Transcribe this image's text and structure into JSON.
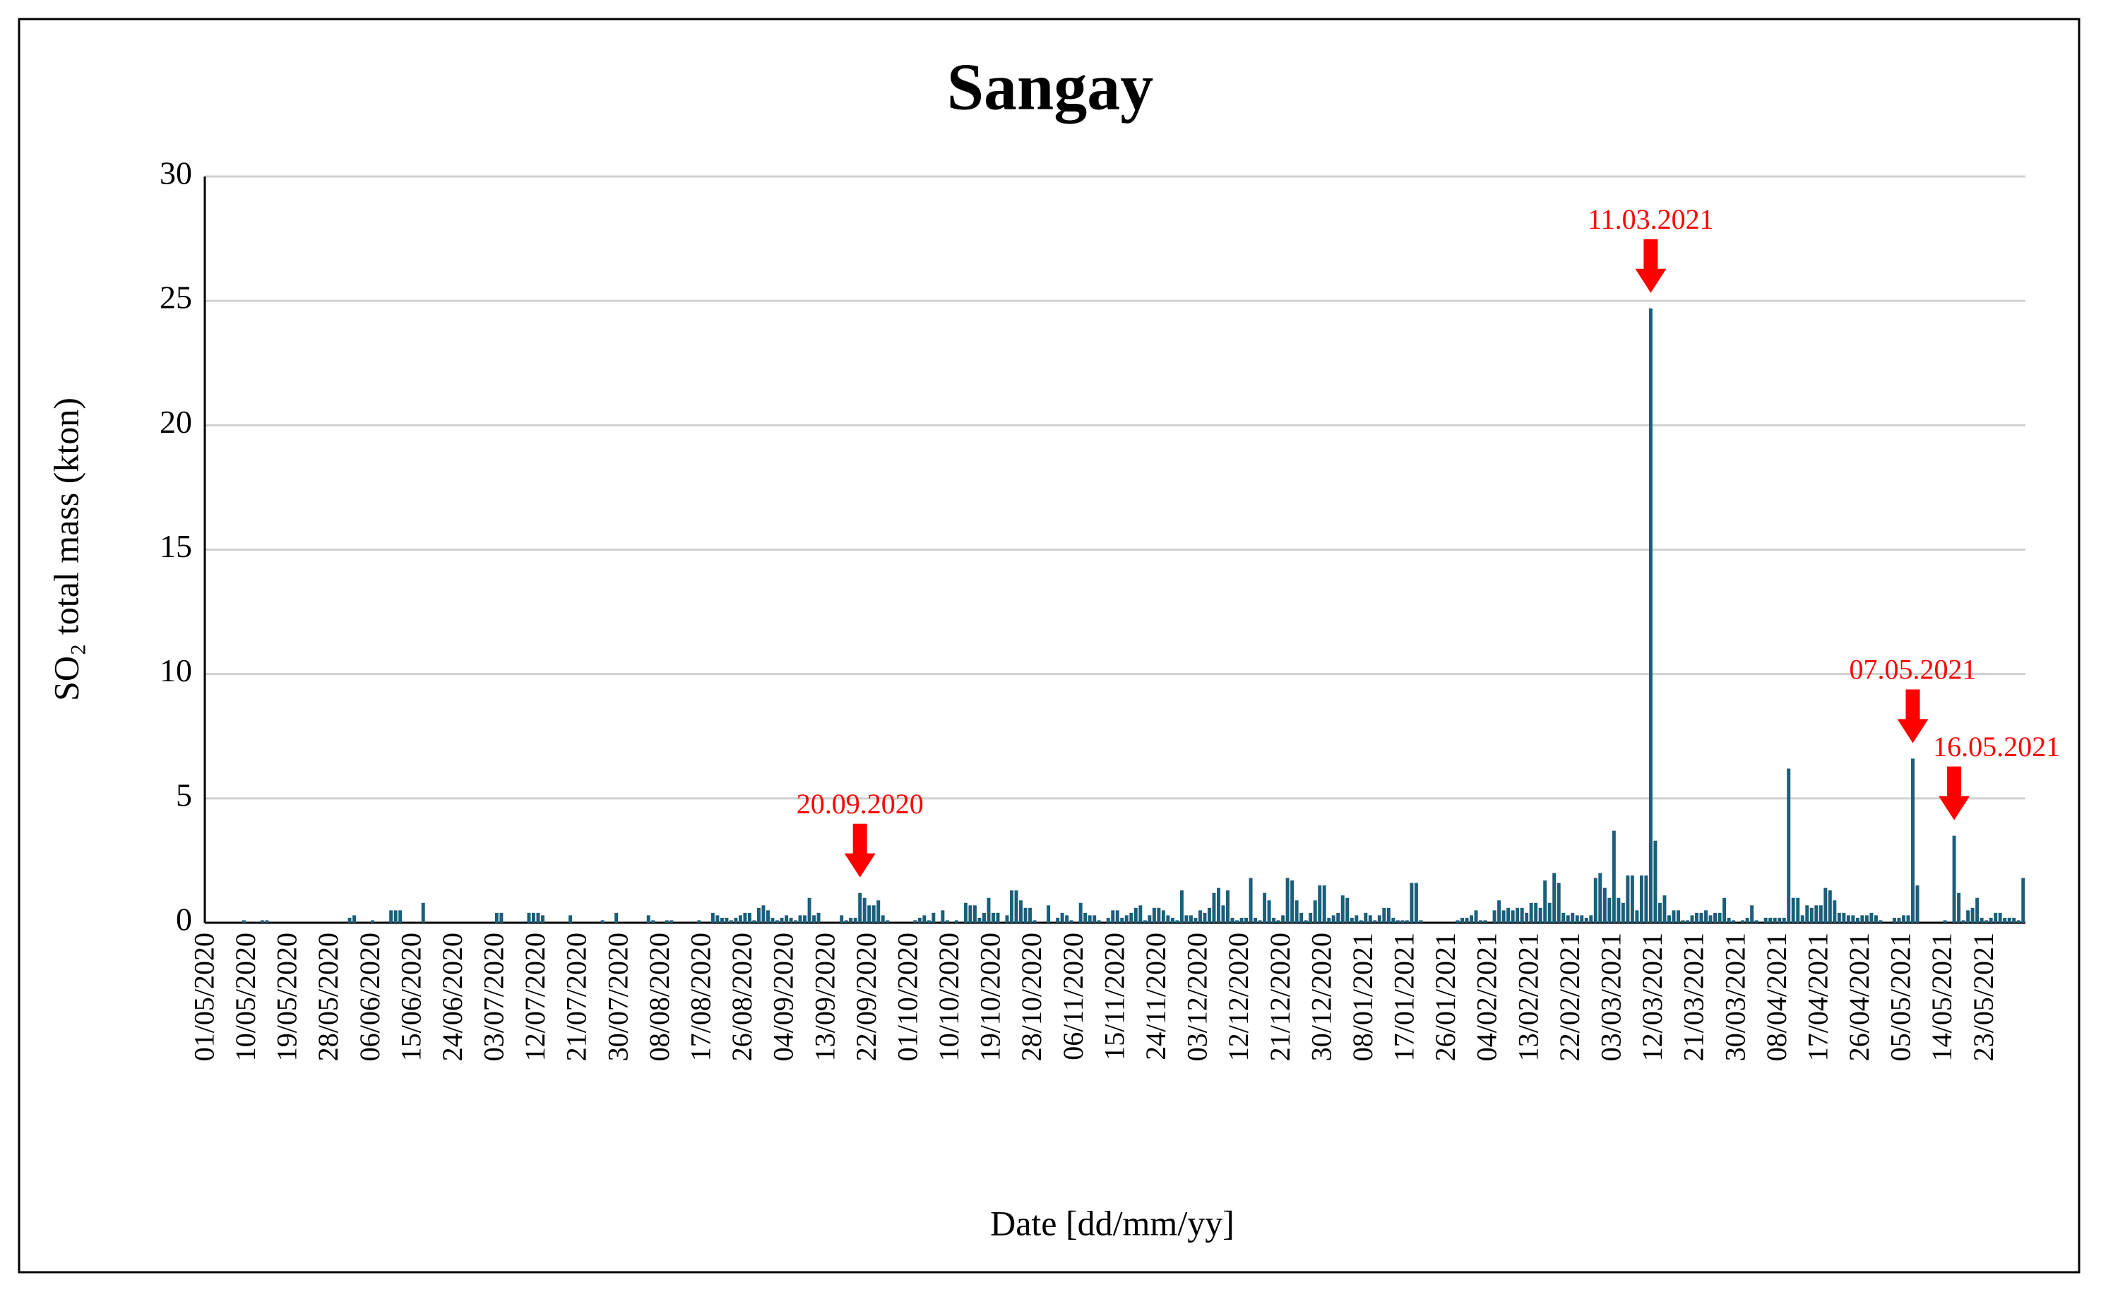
{
  "chart_data": {
    "type": "bar",
    "title": "Sangay",
    "x_label": "Date [dd/mm/yy]",
    "y_label": "SO₂ total mass (kton)",
    "color": "#1b5e7b",
    "grid": true,
    "ylim": [
      0,
      30
    ],
    "yticks": [
      0,
      5,
      10,
      15,
      20,
      25,
      30
    ],
    "annotations": [
      "20.09.2020",
      "11.03.2021",
      "07.05.2021",
      "16.05.2021"
    ],
    "categories": [
      "01/05/2020",
      null,
      null,
      null,
      null,
      null,
      null,
      null,
      null,
      "10/05/2020",
      null,
      null,
      null,
      null,
      null,
      null,
      null,
      null,
      "19/05/2020",
      null,
      null,
      null,
      null,
      null,
      null,
      null,
      null,
      "28/05/2020",
      null,
      null,
      null,
      null,
      null,
      null,
      null,
      null,
      "06/06/2020",
      null,
      null,
      null,
      null,
      null,
      null,
      null,
      null,
      "15/06/2020",
      null,
      null,
      null,
      null,
      null,
      null,
      null,
      null,
      "24/06/2020",
      null,
      null,
      null,
      null,
      null,
      null,
      null,
      null,
      "03/07/2020",
      null,
      null,
      null,
      null,
      null,
      null,
      null,
      null,
      "12/07/2020",
      null,
      null,
      null,
      null,
      null,
      null,
      null,
      null,
      "21/07/2020",
      null,
      null,
      null,
      null,
      null,
      null,
      null,
      null,
      "30/07/2020",
      null,
      null,
      null,
      null,
      null,
      null,
      null,
      null,
      "08/08/2020",
      null,
      null,
      null,
      null,
      null,
      null,
      null,
      null,
      "17/08/2020",
      null,
      null,
      null,
      null,
      null,
      null,
      null,
      null,
      "26/08/2020",
      null,
      null,
      null,
      null,
      null,
      null,
      null,
      null,
      "04/09/2020",
      null,
      null,
      null,
      null,
      null,
      null,
      null,
      null,
      "13/09/2020",
      null,
      null,
      null,
      null,
      null,
      null,
      null,
      null,
      "22/09/2020",
      null,
      null,
      null,
      null,
      null,
      null,
      null,
      null,
      "01/10/2020",
      null,
      null,
      null,
      null,
      null,
      null,
      null,
      null,
      "10/10/2020",
      null,
      null,
      null,
      null,
      null,
      null,
      null,
      null,
      "19/10/2020",
      null,
      null,
      null,
      null,
      null,
      null,
      null,
      null,
      "28/10/2020",
      null,
      null,
      null,
      null,
      null,
      null,
      null,
      null,
      "06/11/2020",
      null,
      null,
      null,
      null,
      null,
      null,
      null,
      null,
      "15/11/2020",
      null,
      null,
      null,
      null,
      null,
      null,
      null,
      null,
      "24/11/2020",
      null,
      null,
      null,
      null,
      null,
      null,
      null,
      null,
      "03/12/2020",
      null,
      null,
      null,
      null,
      null,
      null,
      null,
      null,
      "12/12/2020",
      null,
      null,
      null,
      null,
      null,
      null,
      null,
      null,
      "21/12/2020",
      null,
      null,
      null,
      null,
      null,
      null,
      null,
      null,
      "30/12/2020",
      null,
      null,
      null,
      null,
      null,
      null,
      null,
      null,
      "08/01/2021",
      null,
      null,
      null,
      null,
      null,
      null,
      null,
      null,
      "17/01/2021",
      null,
      null,
      null,
      null,
      null,
      null,
      null,
      null,
      "26/01/2021",
      null,
      null,
      null,
      null,
      null,
      null,
      null,
      null,
      "04/02/2021",
      null,
      null,
      null,
      null,
      null,
      null,
      null,
      null,
      "13/02/2021",
      null,
      null,
      null,
      null,
      null,
      null,
      null,
      null,
      "22/02/2021",
      null,
      null,
      null,
      null,
      null,
      null,
      null,
      null,
      "03/03/2021",
      null,
      null,
      null,
      null,
      null,
      null,
      null,
      null,
      "12/03/2021",
      null,
      null,
      null,
      null,
      null,
      null,
      null,
      null,
      "21/03/2021",
      null,
      null,
      null,
      null,
      null,
      null,
      null,
      null,
      "30/03/2021",
      null,
      null,
      null,
      null,
      null,
      null,
      null,
      null,
      "08/04/2021",
      null,
      null,
      null,
      null,
      null,
      null,
      null,
      null,
      "17/04/2021",
      null,
      null,
      null,
      null,
      null,
      null,
      null,
      null,
      "26/04/2021",
      null,
      null,
      null,
      null,
      null,
      null,
      null,
      null,
      "05/05/2021",
      null,
      null,
      null,
      null,
      null,
      null,
      null,
      null,
      "14/05/2021",
      null,
      null,
      null,
      null,
      null,
      null,
      null,
      null,
      "23/05/2021",
      null,
      null,
      null,
      null,
      null,
      null,
      null,
      null
    ],
    "values": [
      0,
      0,
      0,
      0,
      0,
      0,
      0,
      0,
      0.1,
      0,
      0,
      0,
      0.1,
      0.1,
      0,
      0,
      0,
      0,
      0,
      0,
      0,
      0,
      0,
      0,
      0,
      0,
      0,
      0,
      0,
      0,
      0,
      0.2,
      0.3,
      0,
      0,
      0,
      0.1,
      0,
      0,
      0,
      0.5,
      0.5,
      0.5,
      0,
      0,
      0,
      0,
      0.8,
      0,
      0,
      0,
      0,
      0,
      0,
      0,
      0,
      0,
      0,
      0,
      0,
      0,
      0,
      0,
      0.4,
      0.4,
      0,
      0,
      0,
      0,
      0,
      0.4,
      0.4,
      0.4,
      0.3,
      0,
      0,
      0,
      0,
      0,
      0.3,
      0,
      0,
      0,
      0,
      0,
      0,
      0.1,
      0,
      0,
      0.4,
      0,
      0,
      0,
      0,
      0,
      0,
      0.3,
      0.1,
      0,
      0,
      0.1,
      0.1,
      0,
      0,
      0,
      0,
      0,
      0.1,
      0,
      0,
      0.4,
      0.3,
      0.2,
      0.2,
      0.1,
      0.2,
      0.3,
      0.4,
      0.4,
      0.1,
      0.6,
      0.7,
      0.5,
      0.2,
      0.1,
      0.2,
      0.3,
      0.2,
      0.1,
      0.3,
      0.3,
      1.0,
      0.3,
      0.4,
      0,
      0,
      0,
      0,
      0.3,
      0.1,
      0.2,
      0.2,
      1.2,
      1.0,
      0.7,
      0.7,
      0.9,
      0.3,
      0.1,
      0,
      0,
      0,
      0,
      0,
      0.1,
      0.2,
      0.3,
      0.1,
      0.4,
      0,
      0.5,
      0.1,
      0,
      0.1,
      0,
      0.8,
      0.7,
      0.7,
      0.2,
      0.4,
      1.0,
      0.4,
      0.4,
      0,
      0.3,
      1.3,
      1.3,
      0.9,
      0.6,
      0.6,
      0.1,
      0,
      0,
      0.7,
      0,
      0.2,
      0.4,
      0.3,
      0.1,
      0,
      0.8,
      0.4,
      0.3,
      0.3,
      0.1,
      0,
      0.2,
      0.5,
      0.5,
      0.2,
      0.3,
      0.4,
      0.6,
      0.7,
      0.1,
      0.3,
      0.6,
      0.6,
      0.5,
      0.3,
      0.2,
      0.1,
      1.3,
      0.3,
      0.3,
      0.2,
      0.5,
      0.4,
      0.6,
      1.2,
      1.4,
      0.7,
      1.3,
      0.2,
      0.1,
      0.2,
      0.2,
      1.8,
      0.2,
      0.1,
      1.2,
      0.9,
      0.2,
      0.1,
      0.3,
      1.8,
      1.7,
      0.9,
      0.4,
      0.1,
      0.4,
      0.9,
      1.5,
      1.5,
      0.2,
      0.3,
      0.4,
      1.1,
      1.0,
      0.2,
      0.3,
      0.1,
      0.4,
      0.3,
      0.1,
      0.3,
      0.6,
      0.6,
      0.2,
      0.1,
      0.1,
      0.1,
      1.6,
      1.6,
      0.1,
      0,
      0,
      0,
      0,
      0,
      0,
      0,
      0.1,
      0.2,
      0.2,
      0.3,
      0.5,
      0.1,
      0.1,
      0,
      0.5,
      0.9,
      0.5,
      0.6,
      0.5,
      0.6,
      0.6,
      0.4,
      0.8,
      0.8,
      0.6,
      1.7,
      0.8,
      2.0,
      1.6,
      0.4,
      0.3,
      0.4,
      0.3,
      0.3,
      0.2,
      0.3,
      1.8,
      2.0,
      1.4,
      1.0,
      3.7,
      1.0,
      0.8,
      1.9,
      1.9,
      0.5,
      1.9,
      1.9,
      24.7,
      3.3,
      0.8,
      1.1,
      0.3,
      0.5,
      0.5,
      0.1,
      0.1,
      0.3,
      0.4,
      0.4,
      0.5,
      0.3,
      0.4,
      0.4,
      1.0,
      0.2,
      0.1,
      0,
      0.1,
      0.2,
      0.7,
      0.1,
      0,
      0.2,
      0.2,
      0.2,
      0.2,
      0.2,
      6.2,
      1.0,
      1.0,
      0.3,
      0.7,
      0.6,
      0.7,
      0.7,
      1.4,
      1.3,
      0.9,
      0.4,
      0.4,
      0.3,
      0.3,
      0.2,
      0.3,
      0.3,
      0.4,
      0.3,
      0.1,
      0,
      0,
      0.2,
      0.2,
      0.3,
      0.3,
      6.6,
      1.5,
      0,
      0,
      0,
      0,
      0,
      0.1,
      0,
      3.5,
      1.2,
      0.1,
      0.5,
      0.6,
      1.0,
      0.2,
      0.1,
      0.2,
      0.4,
      0.4,
      0.2,
      0.2,
      0.2,
      0.1,
      1.8
    ]
  }
}
